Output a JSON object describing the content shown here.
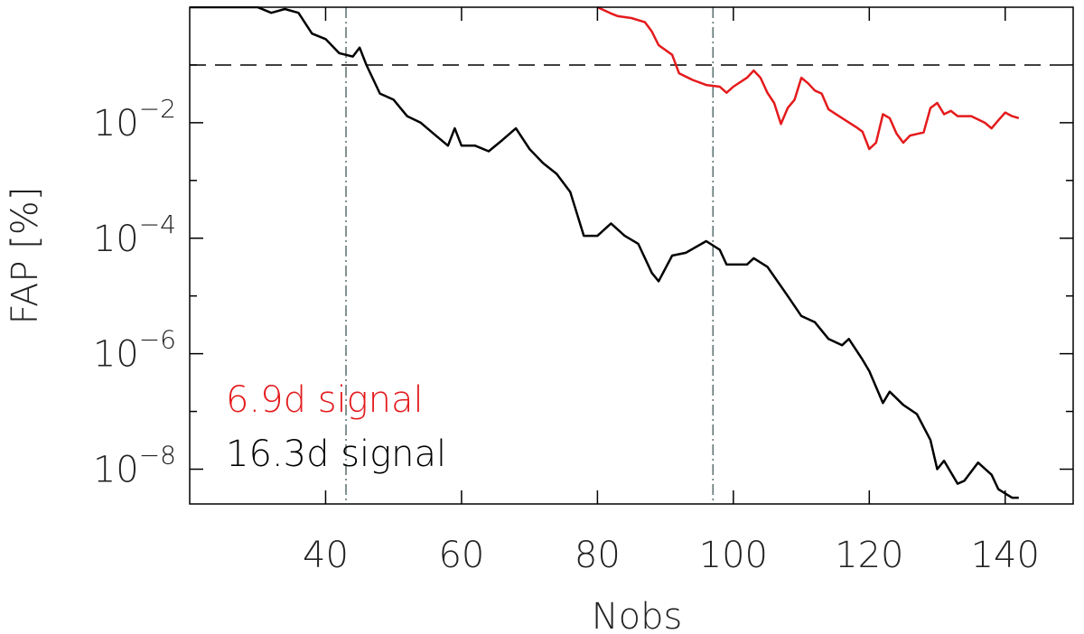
{
  "chart_data": {
    "type": "line",
    "xlabel": "Nobs",
    "ylabel": "FAP [%]",
    "xlim": [
      20,
      150
    ],
    "ylim": [
      2.5e-09,
      1
    ],
    "log_y": true,
    "xticks": [
      40,
      60,
      80,
      100,
      120,
      140
    ],
    "yticks": [
      {
        "value": 0.01,
        "label": "10",
        "exponent": "−2"
      },
      {
        "value": 0.0001,
        "label": "10",
        "exponent": "−4"
      },
      {
        "value": 1e-06,
        "label": "10",
        "exponent": "−6"
      },
      {
        "value": 1e-08,
        "label": "10",
        "exponent": "−8"
      }
    ],
    "yminor_ticks": [
      0.1,
      0.001,
      1e-05,
      1e-07
    ],
    "hlines": [
      0.1
    ],
    "vlines": [
      43,
      97
    ],
    "series": [
      {
        "name": "6.9d signal",
        "color": "#e41a1c",
        "x": [
          80,
          82,
          83,
          85,
          87,
          88,
          89,
          91,
          92,
          94,
          96,
          98,
          99,
          100,
          102,
          103,
          104,
          105,
          106,
          107,
          108,
          109,
          110,
          111,
          112,
          113,
          114,
          116,
          118,
          119,
          120,
          121,
          122,
          123,
          124,
          125,
          126,
          128,
          129,
          130,
          131,
          132,
          133,
          135,
          137,
          138,
          139,
          140,
          141,
          142
        ],
        "values": [
          1,
          0.78,
          0.7,
          0.65,
          0.55,
          0.38,
          0.22,
          0.15,
          0.072,
          0.055,
          0.045,
          0.042,
          0.033,
          0.042,
          0.06,
          0.08,
          0.06,
          0.033,
          0.022,
          0.0095,
          0.018,
          0.025,
          0.06,
          0.048,
          0.036,
          0.032,
          0.017,
          0.012,
          0.0085,
          0.007,
          0.0035,
          0.0045,
          0.014,
          0.012,
          0.0065,
          0.0045,
          0.006,
          0.0068,
          0.018,
          0.022,
          0.014,
          0.016,
          0.013,
          0.013,
          0.01,
          0.008,
          0.011,
          0.015,
          0.013,
          0.012
        ]
      },
      {
        "name": "16.3d signal",
        "color": "#000000",
        "x": [
          20,
          24,
          28,
          30,
          32,
          34,
          36,
          38,
          40,
          42,
          44,
          45,
          46,
          48,
          50,
          52,
          54,
          56,
          58,
          59,
          60,
          62,
          64,
          66,
          68,
          70,
          72,
          74,
          76,
          78,
          80,
          82,
          84,
          86,
          88,
          89,
          91,
          93,
          96,
          98,
          99,
          102,
          103,
          105,
          108,
          110,
          112,
          114,
          116,
          117,
          119,
          120,
          122,
          123,
          125,
          127,
          129,
          130,
          131,
          133,
          134,
          136,
          138,
          139,
          141,
          142
        ],
        "values": [
          1,
          1,
          1,
          1,
          0.8,
          0.93,
          0.8,
          0.35,
          0.28,
          0.16,
          0.14,
          0.2,
          0.1,
          0.032,
          0.025,
          0.013,
          0.01,
          0.0063,
          0.004,
          0.008,
          0.004,
          0.004,
          0.0032,
          0.005,
          0.008,
          0.0035,
          0.002,
          0.0013,
          0.00063,
          0.00011,
          0.00011,
          0.00018,
          0.00011,
          8e-05,
          2.5e-05,
          1.8e-05,
          5e-05,
          5.6e-05,
          8.9e-05,
          6.3e-05,
          3.5e-05,
          3.5e-05,
          4.5e-05,
          3.2e-05,
          1e-05,
          4.5e-06,
          3.5e-06,
          1.8e-06,
          1.4e-06,
          1.8e-06,
          7.9e-07,
          5e-07,
          1.4e-07,
          2.2e-07,
          1.3e-07,
          9e-08,
          3.2e-08,
          1e-08,
          1.4e-08,
          5.6e-09,
          6.3e-09,
          1.3e-08,
          8e-09,
          4.5e-09,
          3.2e-09,
          3.2e-09
        ]
      }
    ]
  }
}
